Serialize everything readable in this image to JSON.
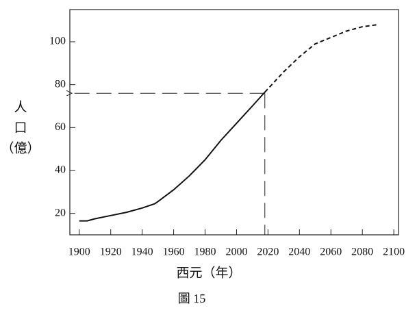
{
  "chart_data": {
    "type": "line",
    "caption": "圖 15",
    "xlabel": "西元（年）",
    "ylabel": [
      "人",
      "口",
      "（億）"
    ],
    "x": [
      1900,
      1905,
      1910,
      1920,
      1930,
      1940,
      1948,
      1950,
      1960,
      1970,
      1980,
      1990,
      2000,
      2010,
      2018,
      2030,
      2040,
      2050,
      2060,
      2070,
      2080,
      2090
    ],
    "series": [
      {
        "color": "#111111",
        "dashed": false,
        "values": [
          16.5,
          16.5,
          17.5,
          19,
          20.5,
          22.5,
          24.5,
          25.5,
          31,
          37.5,
          45,
          54,
          62,
          70,
          76.5,
          null,
          null,
          null,
          null,
          null,
          null,
          null
        ]
      },
      {
        "color": "#111111",
        "dashed": true,
        "values": [
          null,
          null,
          null,
          null,
          null,
          null,
          null,
          null,
          null,
          null,
          null,
          null,
          null,
          null,
          76.5,
          86,
          93,
          99,
          102,
          105,
          107,
          108
        ]
      }
    ],
    "reference": {
      "x": 2018,
      "y": 76
    },
    "xlim": [
      1894,
      2103
    ],
    "ylim": [
      10,
      115
    ],
    "xticks": [
      1900,
      1920,
      1940,
      1960,
      1980,
      2000,
      2020,
      2040,
      2060,
      2080,
      2100
    ],
    "yticks": [
      20,
      40,
      60,
      80,
      100
    ]
  }
}
